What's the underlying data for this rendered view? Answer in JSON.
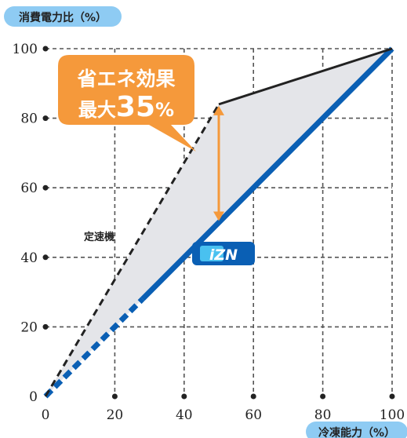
{
  "chart_data": {
    "type": "line",
    "ylabel": "消費電力比（%）",
    "xlabel": "冷凍能力（%）",
    "xlim": [
      0,
      100
    ],
    "ylim": [
      0,
      100
    ],
    "x_ticks": [
      "0",
      "20",
      "40",
      "60",
      "80",
      "100"
    ],
    "y_ticks": [
      "0",
      "20",
      "40",
      "60",
      "80",
      "100"
    ],
    "grid": true,
    "series": [
      {
        "name": "定速機",
        "color": "#222222",
        "style": "dashed-then-solid",
        "x": [
          0,
          50,
          100
        ],
        "y": [
          0,
          84,
          100
        ],
        "solid_from_x": 50
      },
      {
        "name": "",
        "color": "#0a5fb4",
        "style": "dashed-then-solid",
        "x": [
          0,
          100
        ],
        "y": [
          0,
          100
        ],
        "solid_from_x": 28
      }
    ],
    "annotation": {
      "line1": "省エネ効果",
      "line2_prefix": "最大",
      "line2_value": "35",
      "line2_unit": "%",
      "at_x": 50,
      "from_y": 84,
      "to_y": 50
    },
    "logo": {
      "text": "iZN",
      "bg_color": "#0a5fb4",
      "accent_color": "#49c1f0"
    },
    "colors": {
      "fill": "#e4e5e9",
      "callout": "#f5993b",
      "pill": "#8ecbf3",
      "grid": "#555555"
    }
  }
}
